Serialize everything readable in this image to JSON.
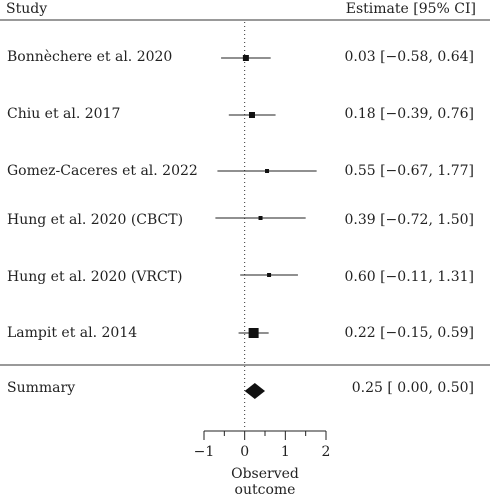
{
  "chart_data": {
    "type": "forest",
    "header_study": "Study",
    "header_estimate": "Estimate [95% CI]",
    "xlabel": "Observed outcome",
    "xlim": [
      -1,
      2
    ],
    "xticks": [
      -1,
      0,
      1,
      2
    ],
    "xtick_labels": [
      "−1",
      "0",
      "1",
      "2"
    ],
    "reference_line": 0,
    "studies": [
      {
        "name": "Bonnèchere et al. 2020",
        "estimate": 0.03,
        "lower": -0.58,
        "upper": 0.64,
        "label": "0.03 [−0.58, 0.64]"
      },
      {
        "name": "Chiu et al. 2017",
        "estimate": 0.18,
        "lower": -0.39,
        "upper": 0.76,
        "label": "0.18 [−0.39, 0.76]"
      },
      {
        "name": "Gomez-Caceres et al. 2022",
        "estimate": 0.55,
        "lower": -0.67,
        "upper": 1.77,
        "label": "0.55 [−0.67, 1.77]"
      },
      {
        "name": "Hung et al. 2020 (CBCT)",
        "estimate": 0.39,
        "lower": -0.72,
        "upper": 1.5,
        "label": "0.39 [−0.72, 1.50]"
      },
      {
        "name": "Hung et al. 2020 (VRCT)",
        "estimate": 0.6,
        "lower": -0.11,
        "upper": 1.31,
        "label": "0.60 [−0.11, 1.31]"
      },
      {
        "name": "Lampit et al. 2014",
        "estimate": 0.22,
        "lower": -0.15,
        "upper": 0.59,
        "label": "0.22 [−0.15, 0.59]"
      }
    ],
    "summary": {
      "name": "Summary",
      "estimate": 0.25,
      "lower": 0.0,
      "upper": 0.5,
      "label": "0.25 [ 0.00, 0.50]"
    }
  }
}
